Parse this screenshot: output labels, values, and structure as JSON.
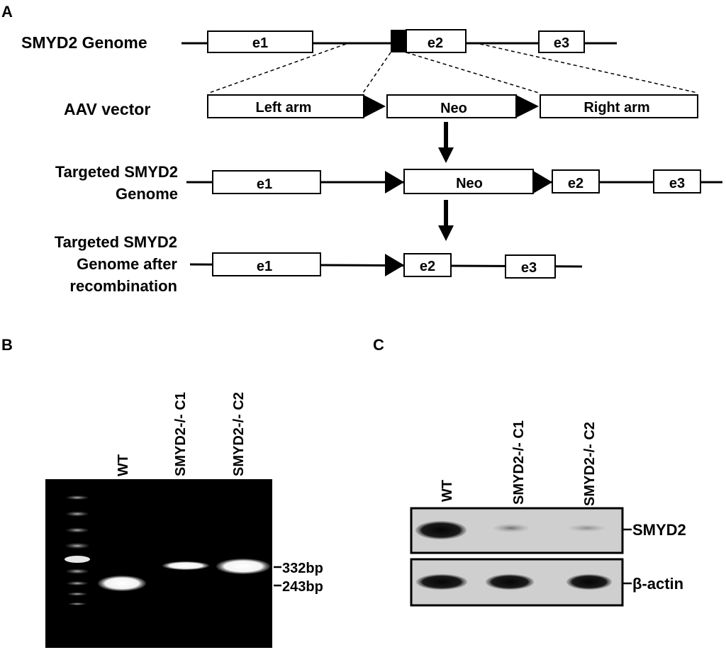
{
  "panels": {
    "a": "A",
    "b": "B",
    "c": "C"
  },
  "panel_a": {
    "rows": {
      "genome": "SMYD2 Genome",
      "aav": "AAV vector",
      "targeted_line1": "Targeted SMYD2",
      "targeted_line2": "Genome",
      "recomb_line1": "Targeted SMYD2",
      "recomb_line2": "Genome after",
      "recomb_line3": "recombination"
    },
    "exons": {
      "e1": "e1",
      "e2": "e2",
      "e3": "e3"
    },
    "vector": {
      "left_arm": "Left arm",
      "neo": "Neo",
      "right_arm": "Right arm"
    }
  },
  "panel_b": {
    "lanes": [
      "WT",
      "SMYD2-/- C1",
      "SMYD2-/- C2"
    ],
    "markers": [
      "332bp",
      "243bp"
    ]
  },
  "panel_c": {
    "lanes": [
      "WT",
      "SMYD2-/- C1",
      "SMYD2-/- C2"
    ],
    "proteins": [
      "SMYD2",
      "β-actin"
    ]
  }
}
